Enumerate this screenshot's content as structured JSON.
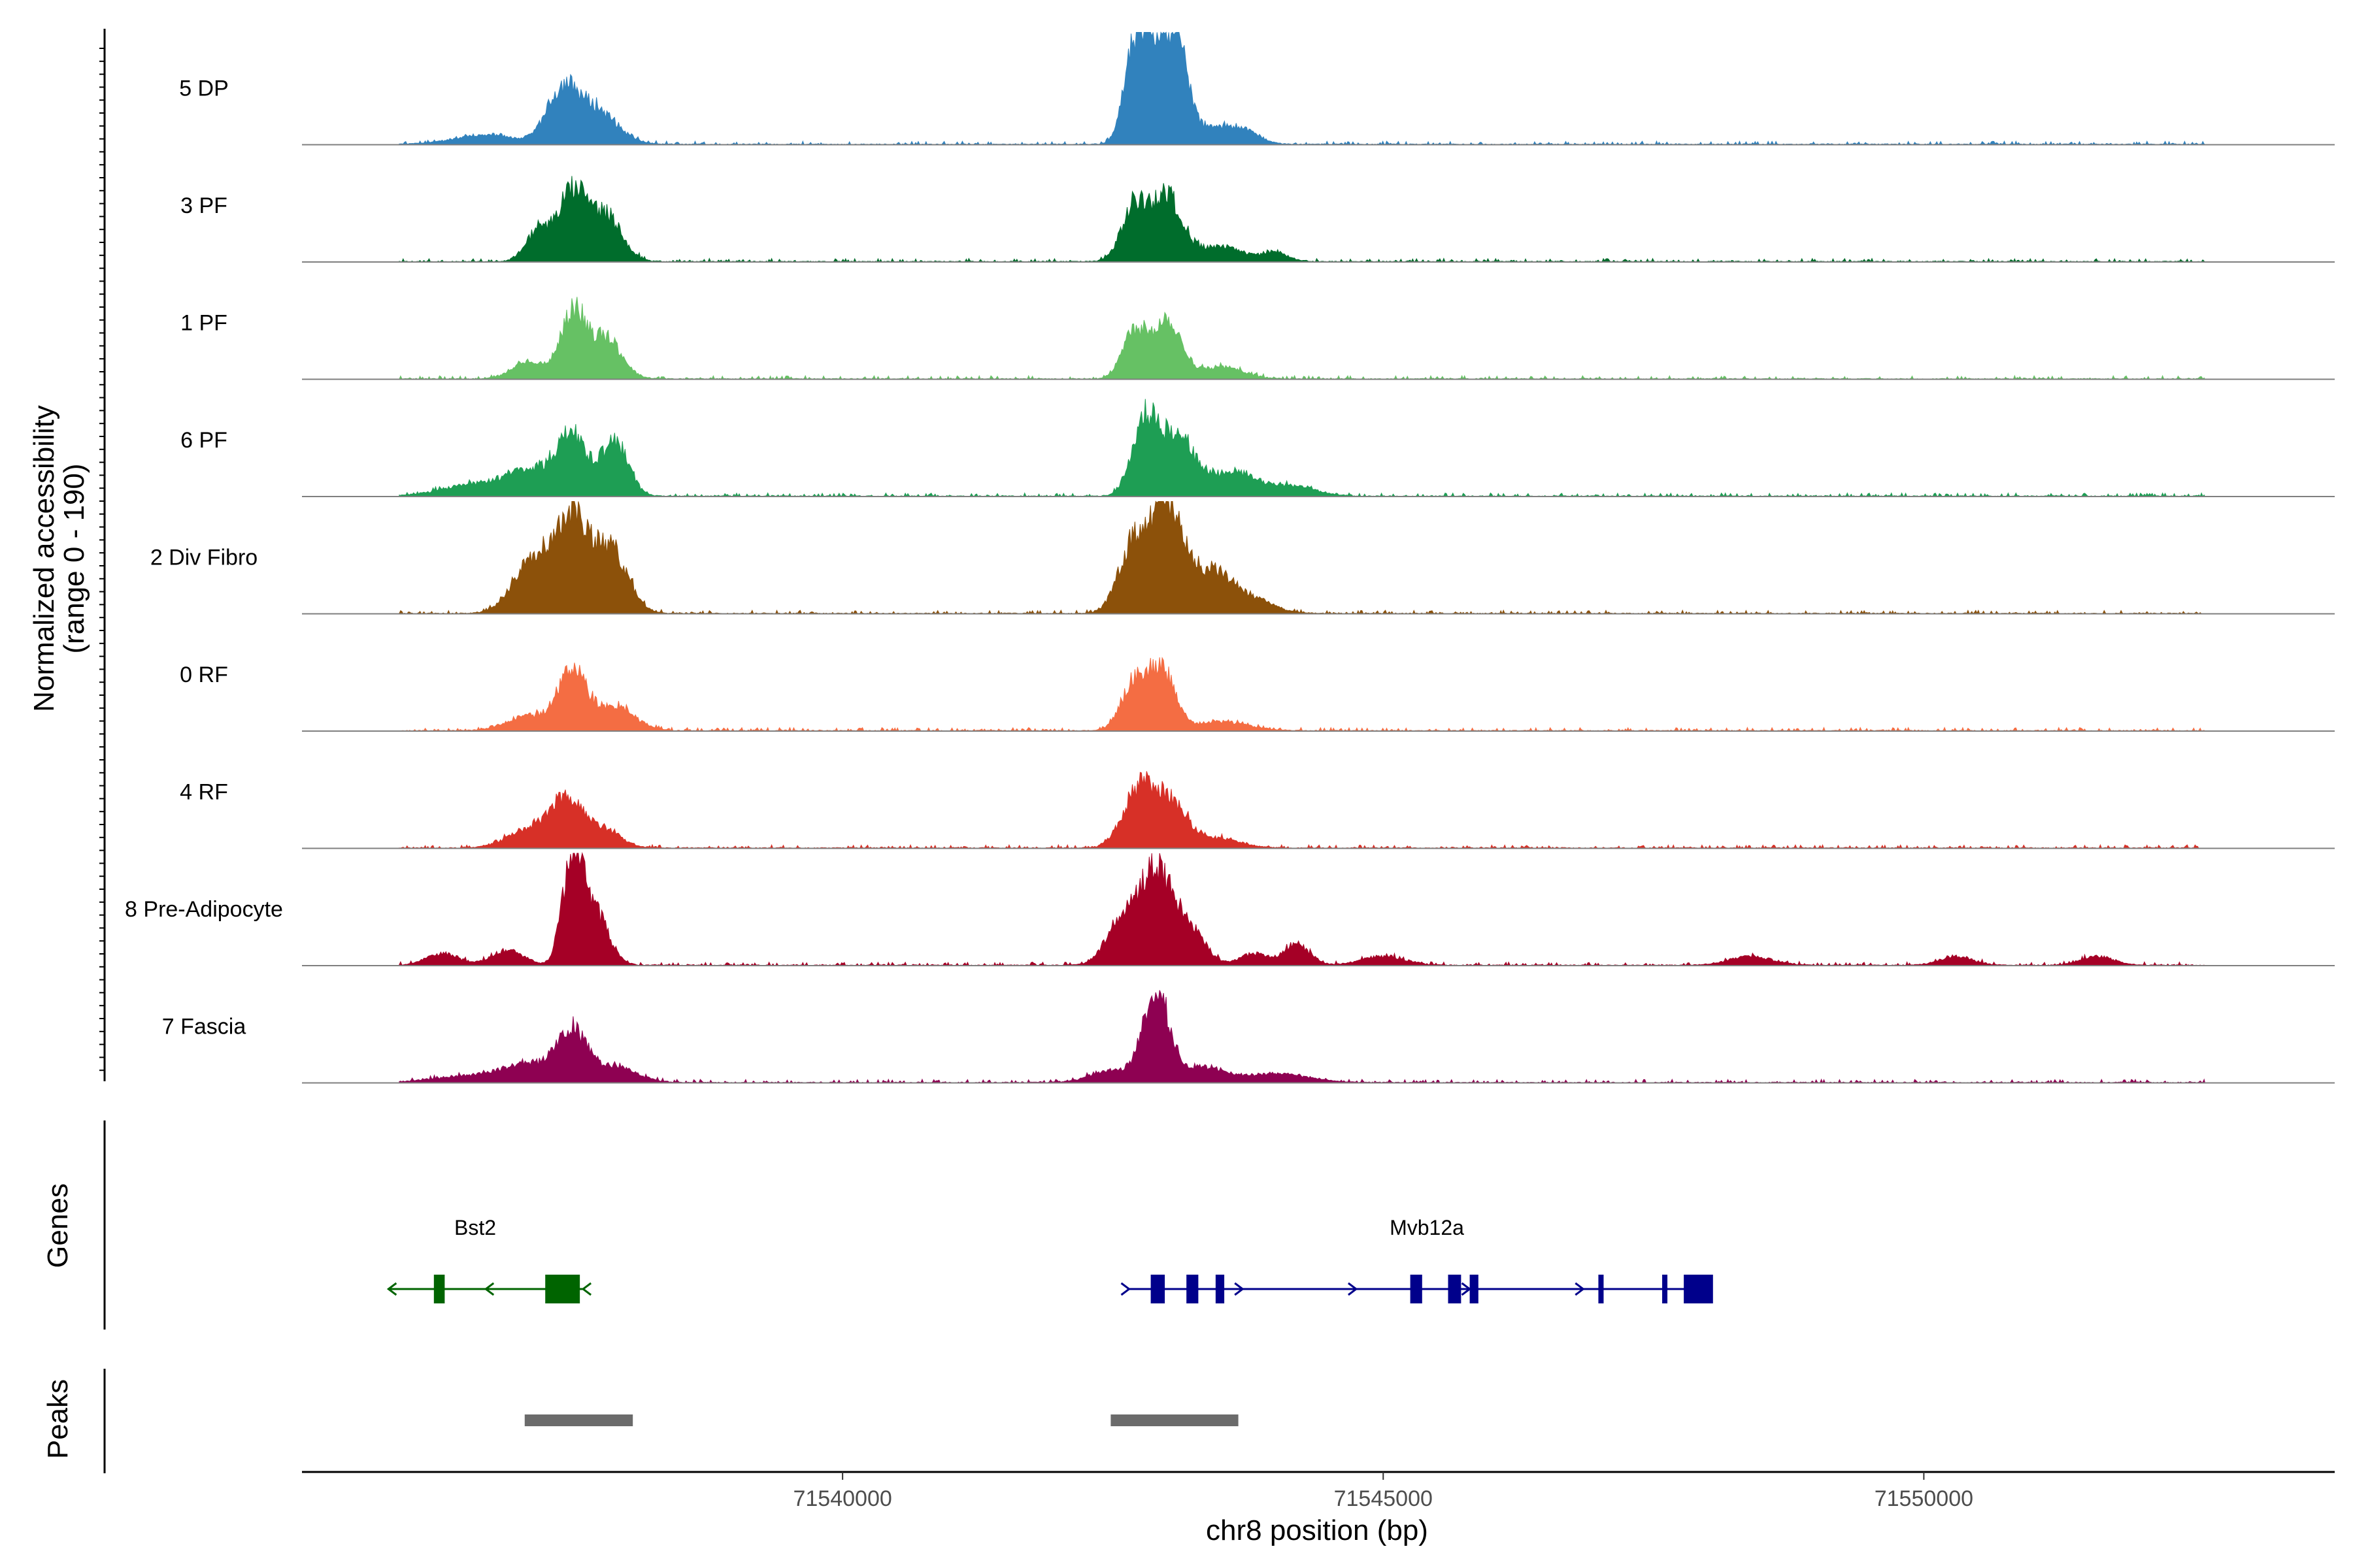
{
  "chart_data": {
    "type": "area",
    "title": "",
    "chromosome": "chr8",
    "xlabel": "chr8 position (bp)",
    "ylabel_line1": "Normalized accessibility",
    "ylabel_line2": "(range 0 - 190)",
    "xlim": [
      71535000,
      71553800
    ],
    "ylim": [
      0,
      190
    ],
    "x_ticks": [
      71540000,
      71545000,
      71550000
    ],
    "x_tick_labels": [
      "71540000",
      "71545000",
      "71550000"
    ],
    "series": [
      {
        "name": "5 DP",
        "color": "#3182BD",
        "peaks": [
          [
            71537400,
            80,
            140
          ],
          [
            71537700,
            60,
            200
          ],
          [
            71536700,
            15,
            300
          ],
          [
            71542700,
            150,
            100
          ],
          [
            71542900,
            160,
            110
          ],
          [
            71543100,
            150,
            100
          ],
          [
            71543400,
            25,
            200
          ],
          [
            71543700,
            20,
            150
          ]
        ]
      },
      {
        "name": "3 PF",
        "color": "#006D2C",
        "peaks": [
          [
            71537200,
            55,
            120
          ],
          [
            71537500,
            110,
            120
          ],
          [
            71537800,
            80,
            150
          ],
          [
            71542700,
            90,
            120
          ],
          [
            71543000,
            110,
            140
          ],
          [
            71543500,
            25,
            200
          ],
          [
            71544000,
            15,
            120
          ]
        ]
      },
      {
        "name": "1 PF",
        "color": "#66C164",
        "peaks": [
          [
            71537100,
            30,
            150
          ],
          [
            71537500,
            110,
            110
          ],
          [
            71537800,
            70,
            150
          ],
          [
            71542700,
            80,
            110
          ],
          [
            71543000,
            100,
            130
          ],
          [
            71543500,
            20,
            200
          ]
        ]
      },
      {
        "name": "6 PF",
        "color": "#1E9E54",
        "peaks": [
          [
            71537100,
            40,
            200
          ],
          [
            71537500,
            100,
            150
          ],
          [
            71537900,
            90,
            120
          ],
          [
            71536600,
            20,
            300
          ],
          [
            71542800,
            130,
            120
          ],
          [
            71543100,
            100,
            140
          ],
          [
            71543600,
            40,
            250
          ],
          [
            71544200,
            15,
            200
          ]
        ]
      },
      {
        "name": "2 Div Fibro",
        "color": "#8C510A",
        "peaks": [
          [
            71537150,
            100,
            180
          ],
          [
            71537500,
            150,
            140
          ],
          [
            71537850,
            110,
            160
          ],
          [
            71542700,
            120,
            140
          ],
          [
            71543000,
            170,
            140
          ],
          [
            71543400,
            70,
            200
          ],
          [
            71543800,
            20,
            200
          ]
        ]
      },
      {
        "name": "0 RF",
        "color": "#F46D43",
        "peaks": [
          [
            71537100,
            25,
            200
          ],
          [
            71537500,
            100,
            130
          ],
          [
            71537900,
            40,
            180
          ],
          [
            71542700,
            80,
            120
          ],
          [
            71542950,
            100,
            120
          ],
          [
            71543500,
            15,
            250
          ]
        ]
      },
      {
        "name": "4 RF",
        "color": "#D73027",
        "peaks": [
          [
            71537100,
            30,
            200
          ],
          [
            71537450,
            80,
            150
          ],
          [
            71537800,
            30,
            150
          ],
          [
            71542750,
            100,
            150
          ],
          [
            71543050,
            70,
            150
          ],
          [
            71543500,
            15,
            200
          ]
        ]
      },
      {
        "name": "8 Pre-Adipocyte",
        "color": "#A50026",
        "peaks": [
          [
            71536300,
            20,
            150
          ],
          [
            71536900,
            25,
            150
          ],
          [
            71537500,
            175,
            90
          ],
          [
            71537700,
            90,
            130
          ],
          [
            71542600,
            80,
            150
          ],
          [
            71542900,
            150,
            140
          ],
          [
            71543200,
            60,
            150
          ],
          [
            71543800,
            20,
            120
          ],
          [
            71544200,
            35,
            120
          ],
          [
            71545000,
            15,
            200
          ],
          [
            71548400,
            15,
            200
          ],
          [
            71550300,
            15,
            150
          ],
          [
            71551600,
            15,
            150
          ]
        ]
      },
      {
        "name": "7 Fascia",
        "color": "#8E0152",
        "peaks": [
          [
            71537100,
            30,
            250
          ],
          [
            71537500,
            80,
            140
          ],
          [
            71537900,
            25,
            200
          ],
          [
            71536500,
            10,
            300
          ],
          [
            71542500,
            20,
            200
          ],
          [
            71542900,
            150,
            120
          ],
          [
            71543300,
            25,
            200
          ],
          [
            71544000,
            15,
            300
          ]
        ]
      }
    ],
    "genes": [
      {
        "name": "Bst2",
        "strand": "-",
        "color": "#006400",
        "start": 71535800,
        "end": 71537600,
        "exons": [
          [
            71536220,
            71536320
          ],
          [
            71537250,
            71537570
          ]
        ]
      },
      {
        "name": "Mvb12a",
        "strand": "+",
        "color": "#00008B",
        "start": 71542650,
        "end": 71547900,
        "exons": [
          [
            71542850,
            71542980
          ],
          [
            71543180,
            71543290
          ],
          [
            71543450,
            71543530
          ],
          [
            71545250,
            71545360
          ],
          [
            71545600,
            71545720
          ],
          [
            71545800,
            71545880
          ],
          [
            71546990,
            71547020
          ],
          [
            71547580,
            71547620
          ],
          [
            71547780,
            71548050
          ]
        ]
      }
    ],
    "peak_regions": [
      [
        71537060,
        71538060
      ],
      [
        71542480,
        71543660
      ]
    ],
    "panel_labels": {
      "genes": "Genes",
      "peaks": "Peaks"
    }
  }
}
